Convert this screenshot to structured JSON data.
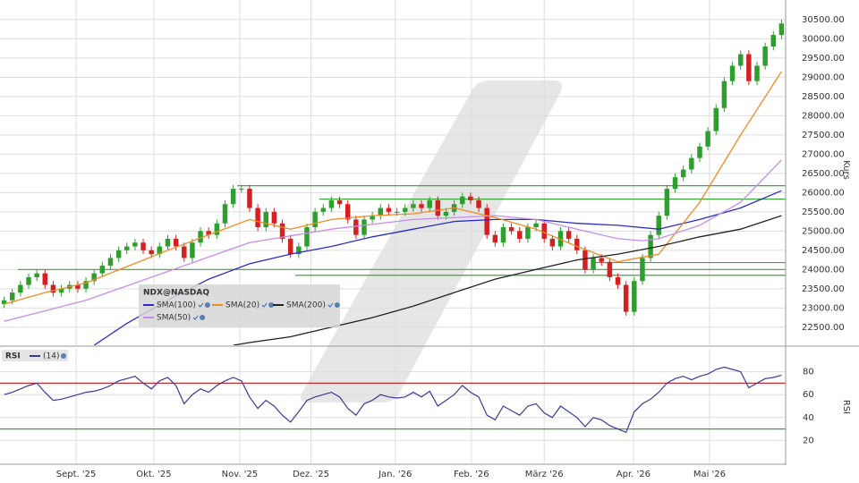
{
  "chart_data": [
    {
      "type": "candlestick",
      "title": "NDX@NASDAQ",
      "ylabel": "Kurs",
      "up_color": "#2e9e2e",
      "down_color": "#d42020",
      "open": [
        23100,
        23200,
        23400,
        23600,
        23800,
        23900,
        23600,
        23400,
        23500,
        23600,
        23500,
        23700,
        23900,
        24100,
        24300,
        24500,
        24600,
        24700,
        24500,
        24400,
        24600,
        24800,
        24600,
        24300,
        24700,
        25000,
        24900,
        25200,
        25700,
        26100,
        26100,
        25600,
        25100,
        25500,
        25200,
        24800,
        24400,
        24600,
        25100,
        25500,
        25600,
        25800,
        25700,
        25300,
        24900,
        25300,
        25400,
        25600,
        25500,
        25500,
        25600,
        25700,
        25600,
        25800,
        25400,
        25500,
        25700,
        25900,
        25800,
        25600,
        24900,
        24700,
        25100,
        25000,
        24800,
        25100,
        25200,
        24800,
        24600,
        25000,
        24800,
        24500,
        24000,
        24300,
        24200,
        23800,
        23600,
        22900,
        23700,
        24300,
        24900,
        25400,
        26100,
        26400,
        26600,
        26900,
        27200,
        27600,
        28200,
        28900,
        29300,
        29600,
        28900,
        29300,
        29800,
        30100
      ],
      "high": [
        23300,
        23500,
        23700,
        23900,
        24000,
        24000,
        23700,
        23600,
        23700,
        23700,
        23800,
        24000,
        24200,
        24400,
        24600,
        24700,
        24800,
        24800,
        24600,
        24700,
        24900,
        24900,
        24700,
        24800,
        25100,
        25100,
        25300,
        25800,
        26200,
        26200,
        26200,
        25700,
        25600,
        25600,
        25300,
        24900,
        24700,
        25200,
        25600,
        25700,
        25900,
        25900,
        25800,
        25400,
        25400,
        25500,
        25700,
        25700,
        25600,
        25700,
        25800,
        25800,
        25900,
        25900,
        25600,
        25800,
        26000,
        26000,
        25900,
        25700,
        25000,
        25200,
        25200,
        25100,
        25200,
        25300,
        25300,
        24900,
        25100,
        25100,
        24900,
        24600,
        24400,
        24400,
        24300,
        23900,
        23700,
        23800,
        24400,
        25000,
        25500,
        26200,
        26500,
        26700,
        27000,
        27300,
        27700,
        28300,
        29000,
        29400,
        29700,
        29700,
        29400,
        29900,
        30200,
        30500
      ],
      "low": [
        23000,
        23100,
        23300,
        23500,
        23700,
        23500,
        23300,
        23300,
        23400,
        23400,
        23400,
        23600,
        23800,
        24000,
        24200,
        24400,
        24500,
        24400,
        24300,
        24300,
        24500,
        24500,
        24200,
        24200,
        24600,
        24800,
        24800,
        25100,
        25600,
        26000,
        25500,
        25000,
        25000,
        25100,
        24700,
        24300,
        24300,
        24500,
        25000,
        25400,
        25500,
        25600,
        25200,
        24800,
        24800,
        25200,
        25300,
        25400,
        25400,
        25400,
        25500,
        25500,
        25500,
        25300,
        25300,
        25400,
        25600,
        25700,
        25500,
        24800,
        24600,
        24600,
        24900,
        24700,
        24700,
        25000,
        24700,
        24500,
        24500,
        24700,
        24400,
        23900,
        23900,
        24100,
        23700,
        23500,
        22800,
        22800,
        23600,
        24200,
        24800,
        25300,
        26000,
        26300,
        26500,
        26800,
        27100,
        27500,
        28100,
        28800,
        29200,
        28800,
        28800,
        29200,
        29700,
        30000
      ],
      "close": [
        23200,
        23400,
        23600,
        23800,
        23900,
        23600,
        23400,
        23500,
        23600,
        23500,
        23700,
        23900,
        24100,
        24300,
        24500,
        24600,
        24700,
        24500,
        24400,
        24600,
        24800,
        24600,
        24300,
        24700,
        25000,
        24900,
        25200,
        25700,
        26100,
        26100,
        25600,
        25100,
        25500,
        25200,
        24800,
        24400,
        24600,
        25100,
        25500,
        25600,
        25800,
        25700,
        25300,
        24900,
        25300,
        25400,
        25600,
        25500,
        25500,
        25600,
        25700,
        25600,
        25800,
        25400,
        25500,
        25700,
        25900,
        25800,
        25600,
        24900,
        24700,
        25100,
        25000,
        24800,
        25100,
        25200,
        24800,
        24600,
        25000,
        24800,
        24500,
        24000,
        24300,
        24200,
        23800,
        23600,
        22900,
        23700,
        24300,
        24900,
        25400,
        26100,
        26400,
        26600,
        26900,
        27200,
        27600,
        28200,
        28900,
        29300,
        29600,
        28900,
        29300,
        29800,
        30100,
        30400
      ],
      "series": [
        {
          "name": "SMA(100)",
          "color": "#2b2bc8",
          "x": [
            11,
            15,
            20,
            25,
            30,
            35,
            40,
            45,
            50,
            55,
            60,
            65,
            70,
            75,
            80,
            85,
            90,
            95
          ],
          "values": [
            22030,
            22600,
            23200,
            23750,
            24150,
            24400,
            24600,
            24850,
            25050,
            25250,
            25300,
            25300,
            25200,
            25150,
            25050,
            25300,
            25600,
            26050
          ]
        },
        {
          "name": "SMA(20)",
          "color": "#f08a24",
          "x": [
            0,
            5,
            10,
            20,
            30,
            35,
            40,
            45,
            50,
            55,
            60,
            65,
            70,
            75,
            80,
            85,
            90,
            95
          ],
          "values": [
            23100,
            23400,
            23650,
            24500,
            25300,
            25050,
            25300,
            25400,
            25450,
            25600,
            25350,
            25050,
            24600,
            24200,
            24400,
            25750,
            27500,
            29150
          ]
        },
        {
          "name": "SMA(200)",
          "color": "#222222",
          "x": [
            28,
            30,
            35,
            40,
            45,
            50,
            55,
            60,
            65,
            70,
            75,
            80,
            85,
            90,
            95
          ],
          "values": [
            22030,
            22100,
            22250,
            22500,
            22750,
            23050,
            23400,
            23750,
            24000,
            24250,
            24400,
            24600,
            24850,
            25050,
            25400
          ]
        },
        {
          "name": "SMA(50)",
          "color": "#c58ee8",
          "x": [
            0,
            10,
            20,
            30,
            40,
            50,
            60,
            65,
            70,
            75,
            78,
            80,
            85,
            90,
            95
          ],
          "values": [
            22650,
            23200,
            23950,
            24700,
            25050,
            25300,
            25400,
            25300,
            25050,
            24800,
            24750,
            24800,
            25150,
            25750,
            26850
          ]
        }
      ],
      "hlines": [
        {
          "value": 26180,
          "from": 28.5
        },
        {
          "value": 25830,
          "from": 38.5
        },
        {
          "value": 24180,
          "from": 72.2
        },
        {
          "value": 24000,
          "from": 1.7
        },
        {
          "value": 23850,
          "from": 35.6
        }
      ],
      "hline_color": "#3aa83a",
      "xlim": [
        -0.5,
        95.5
      ],
      "ylim": [
        22030,
        31010
      ],
      "yticks": [
        {
          "value": 22500,
          "label": "22500.00"
        },
        {
          "value": 23000,
          "label": "23000.00"
        },
        {
          "value": 23500,
          "label": "23500.00"
        },
        {
          "value": 24000,
          "label": "24000.00"
        },
        {
          "value": 24500,
          "label": "24500.00"
        },
        {
          "value": 25000,
          "label": "25000.00"
        },
        {
          "value": 25500,
          "label": "25500.00"
        },
        {
          "value": 26000,
          "label": "26000.00"
        },
        {
          "value": 26500,
          "label": "26500.00"
        },
        {
          "value": 27000,
          "label": "27000.00"
        },
        {
          "value": 27500,
          "label": "27500.00"
        },
        {
          "value": 28000,
          "label": "28000.00"
        },
        {
          "value": 28500,
          "label": "28500.00"
        },
        {
          "value": 29000,
          "label": "29000.00"
        },
        {
          "value": 29500,
          "label": "29500.00"
        },
        {
          "value": 30000,
          "label": "30000.00"
        },
        {
          "value": 30500,
          "label": "30500.00"
        }
      ],
      "grid": true
    },
    {
      "type": "line",
      "title": "RSI",
      "ylabel": "RSI",
      "series": [
        {
          "name": "(14)",
          "color": "#3a3a9a",
          "values": [
            60,
            62,
            65,
            68,
            70,
            62,
            55,
            56,
            58,
            60,
            62,
            63,
            65,
            68,
            72,
            74,
            76,
            70,
            65,
            72,
            75,
            68,
            52,
            60,
            65,
            62,
            68,
            72,
            75,
            72,
            58,
            48,
            55,
            50,
            42,
            36,
            45,
            55,
            58,
            60,
            62,
            58,
            48,
            42,
            52,
            55,
            60,
            58,
            57,
            58,
            62,
            58,
            63,
            50,
            55,
            60,
            68,
            62,
            58,
            42,
            38,
            50,
            46,
            42,
            50,
            52,
            44,
            40,
            50,
            45,
            40,
            32,
            40,
            38,
            33,
            30,
            27,
            45,
            52,
            56,
            62,
            70,
            74,
            76,
            73,
            76,
            78,
            82,
            84,
            82,
            80,
            66,
            70,
            74,
            75,
            77
          ]
        }
      ],
      "hlines": [
        {
          "value": 70,
          "color": "#c03030"
        },
        {
          "value": 30,
          "color": "#40a040"
        }
      ],
      "xlim": [
        -0.5,
        95.5
      ],
      "ylim": [
        0,
        100
      ],
      "yticks": [
        20,
        40,
        60,
        80
      ],
      "xticks": [
        {
          "value": 8.8,
          "label": "Sept. '25"
        },
        {
          "value": 18.3,
          "label": "Okt. '25"
        },
        {
          "value": 28.8,
          "label": "Nov. '25"
        },
        {
          "value": 37.5,
          "label": "Dez. '25"
        },
        {
          "value": 47.8,
          "label": "Jan. '26"
        },
        {
          "value": 57.1,
          "label": "Feb. '26"
        },
        {
          "value": 66.0,
          "label": "März '26"
        },
        {
          "value": 76.9,
          "label": "Apr. '26"
        },
        {
          "value": 86.2,
          "label": "Mai '26"
        }
      ],
      "grid": true
    }
  ]
}
